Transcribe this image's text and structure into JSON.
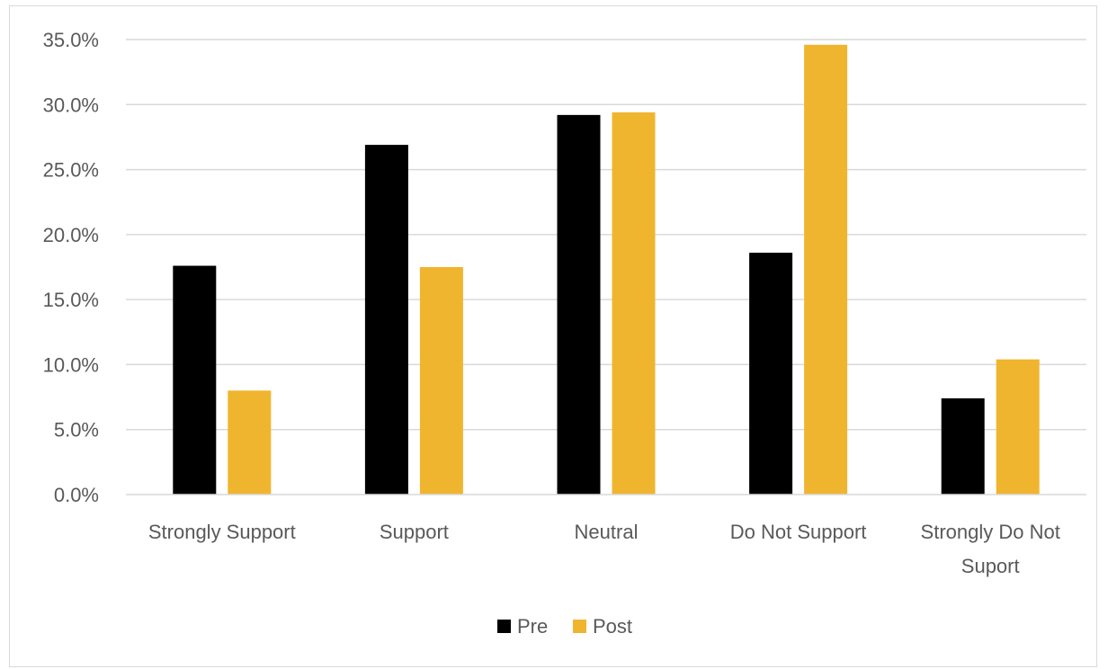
{
  "chart_data": {
    "type": "bar",
    "categories": [
      [
        "Strongly Support"
      ],
      [
        "Support"
      ],
      [
        "Neutral"
      ],
      [
        "Do Not Support"
      ],
      [
        "Strongly Do Not",
        "Suport"
      ]
    ],
    "series": [
      {
        "name": "Pre",
        "color": "#000000",
        "values": [
          17.6,
          26.9,
          29.2,
          18.6,
          7.4
        ]
      },
      {
        "name": "Post",
        "color": "#f0b52f",
        "values": [
          8.0,
          17.5,
          29.4,
          34.6,
          10.4
        ]
      }
    ],
    "y_ticks": [
      "0.0%",
      "5.0%",
      "10.0%",
      "15.0%",
      "20.0%",
      "25.0%",
      "30.0%",
      "35.0%"
    ],
    "ylim": [
      0,
      35
    ],
    "grid": true,
    "legend": "bottom-center",
    "title": "",
    "xlabel": "",
    "ylabel": ""
  }
}
